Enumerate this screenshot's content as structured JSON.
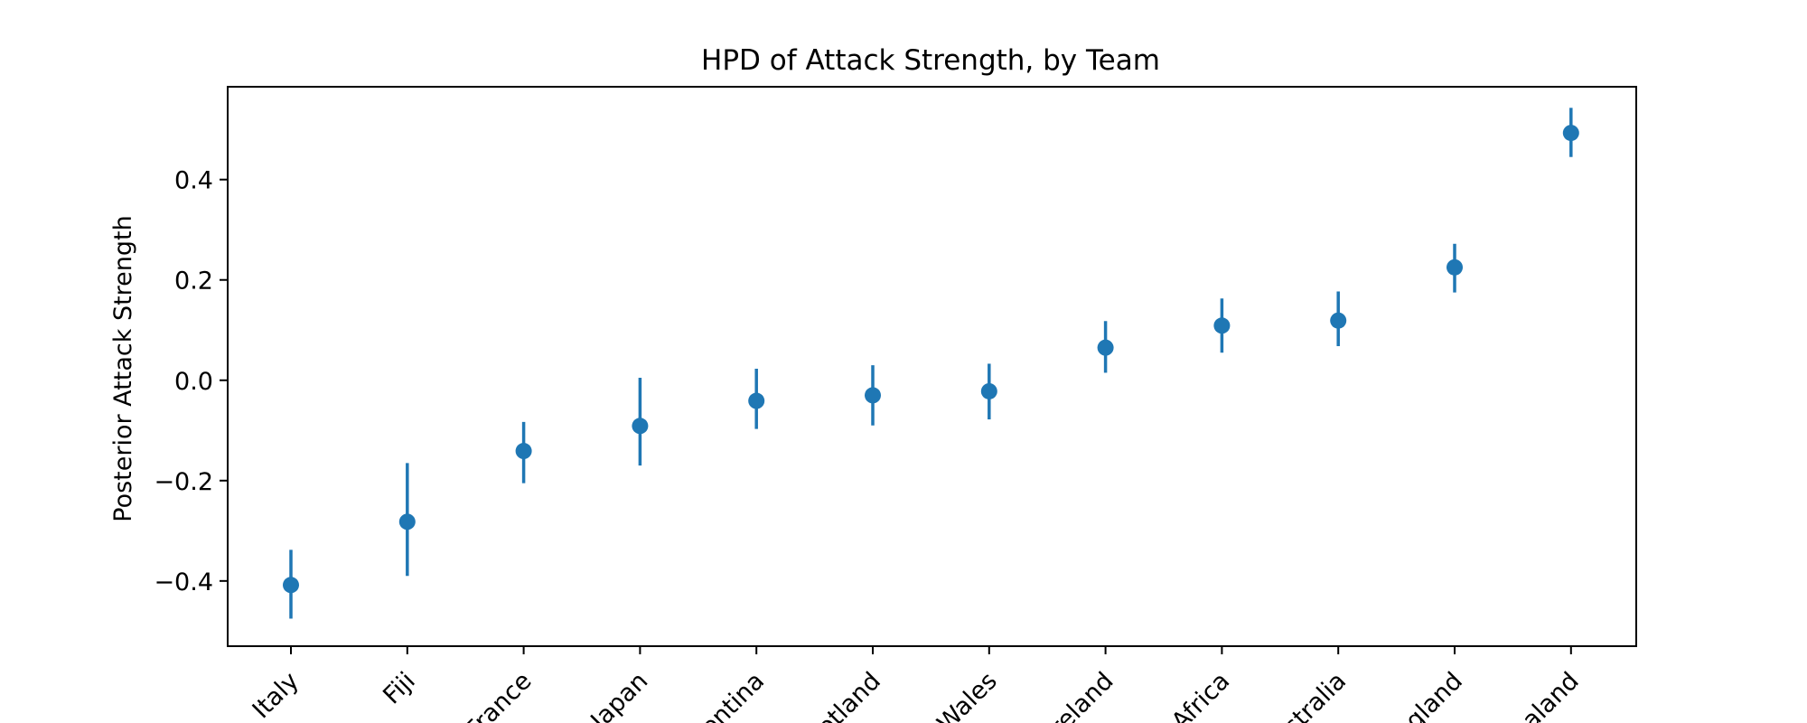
{
  "chart_data": {
    "type": "scatter",
    "title": "HPD of Attack Strength, by Team",
    "xlabel": "",
    "ylabel": "Posterior Attack Strength",
    "categories": [
      "Italy",
      "Fiji",
      "France",
      "Japan",
      "Argentina",
      "Scotland",
      "Wales",
      "Ireland",
      "South Africa",
      "Australia",
      "England",
      "New Zealand"
    ],
    "tick_labels_visible": [
      "Italy",
      "Fiji",
      "France",
      "Japan",
      "entina",
      "otland",
      "Wales",
      "Ireland",
      "Africa",
      "stralia",
      "ngland",
      "ealand"
    ],
    "series": [
      {
        "values": [
          -0.408,
          -0.282,
          -0.141,
          -0.091,
          -0.041,
          -0.03,
          -0.022,
          0.065,
          0.109,
          0.119,
          0.225,
          0.493
        ],
        "hpd_low": [
          -0.475,
          -0.39,
          -0.205,
          -0.17,
          -0.097,
          -0.09,
          -0.078,
          0.015,
          0.055,
          0.068,
          0.175,
          0.445
        ],
        "hpd_high": [
          -0.338,
          -0.165,
          -0.083,
          0.005,
          0.023,
          0.03,
          0.033,
          0.118,
          0.163,
          0.177,
          0.272,
          0.543
        ]
      }
    ],
    "ylim": [
      -0.53,
      0.585
    ],
    "yticks": [
      -0.4,
      -0.2,
      0.0,
      0.2,
      0.4
    ],
    "ytick_labels": [
      "−0.4",
      "−0.2",
      "0.0",
      "0.2",
      "0.4"
    ],
    "grid": false,
    "x_tick_rotation_deg": 45,
    "colors": {
      "series": "#1f77b4",
      "axes": "#000000"
    }
  }
}
